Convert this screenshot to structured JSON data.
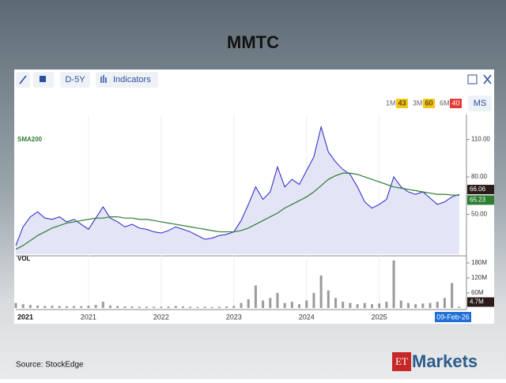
{
  "ui": {
    "toolbar_range": "D-5Y",
    "toolbar_indicators": "Indicators",
    "periods": [
      {
        "label": "1M",
        "score": "43",
        "color": "#f5c518"
      },
      {
        "label": "3M",
        "score": "60",
        "color": "#f5c518"
      },
      {
        "label": "6M",
        "score": "40",
        "color": "#e53935"
      }
    ],
    "ms": "MS",
    "axis_start": "2021",
    "source": "Source: StockEdge",
    "logo_et": "ET",
    "logo_markets": "Markets"
  },
  "chart_data": {
    "type": "line",
    "title": "MMTC",
    "cursor_label": "09-Feb-26",
    "x": [
      2020.0,
      2020.1,
      2020.2,
      2020.3,
      2020.4,
      2020.5,
      2020.6,
      2020.7,
      2020.8,
      2020.9,
      2021.0,
      2021.1,
      2021.2,
      2021.3,
      2021.4,
      2021.5,
      2021.6,
      2021.7,
      2021.8,
      2021.9,
      2022.0,
      2022.1,
      2022.2,
      2022.3,
      2022.4,
      2022.5,
      2022.6,
      2022.7,
      2022.8,
      2022.9,
      2023.0,
      2023.1,
      2023.2,
      2023.3,
      2023.4,
      2023.5,
      2023.6,
      2023.7,
      2023.8,
      2023.9,
      2024.0,
      2024.1,
      2024.2,
      2024.3,
      2024.4,
      2024.5,
      2024.6,
      2024.7,
      2024.8,
      2024.9,
      2025.0,
      2025.1,
      2025.2,
      2025.3,
      2025.4,
      2025.5,
      2025.6,
      2025.7,
      2025.8,
      2025.9,
      2026.0,
      2026.1
    ],
    "series": [
      {
        "color": "#2323c8",
        "fill": "#e4e4f7",
        "values": [
          25,
          40,
          48,
          52,
          47,
          46,
          48,
          44,
          46,
          42,
          38,
          47,
          56,
          47,
          44,
          40,
          42,
          39,
          38,
          36,
          35,
          37,
          40,
          38,
          36,
          33,
          30,
          31,
          33,
          34,
          36,
          45,
          58,
          72,
          62,
          68,
          88,
          72,
          78,
          74,
          85,
          96,
          120,
          100,
          92,
          86,
          82,
          72,
          60,
          55,
          58,
          62,
          80,
          72,
          68,
          66,
          68,
          63,
          58,
          60,
          64,
          66.06
        ]
      },
      {
        "name": "SMA200",
        "color": "#2e7d32",
        "values": [
          22,
          25,
          29,
          33,
          36,
          39,
          41,
          43,
          44,
          45,
          46,
          47,
          47,
          48,
          48,
          47,
          47,
          46,
          46,
          45,
          44,
          43,
          42,
          41,
          40,
          39,
          38,
          37,
          36,
          36,
          36,
          37,
          39,
          42,
          45,
          48,
          51,
          55,
          58,
          61,
          64,
          68,
          73,
          78,
          81,
          83,
          83,
          82,
          80,
          78,
          76,
          74,
          72,
          71,
          70,
          69,
          68,
          67,
          66,
          66,
          65.5,
          65.23
        ]
      },
      {
        "name": "VOL",
        "type": "bar",
        "axis": "y2",
        "color": "#9a9a9a",
        "values": [
          20,
          15,
          12,
          10,
          8,
          9,
          8,
          7,
          8,
          7,
          9,
          12,
          25,
          10,
          8,
          6,
          6,
          5,
          5,
          5,
          5,
          6,
          8,
          6,
          5,
          4,
          5,
          4,
          5,
          6,
          8,
          20,
          35,
          90,
          30,
          40,
          60,
          20,
          25,
          15,
          30,
          60,
          130,
          70,
          40,
          25,
          20,
          15,
          20,
          15,
          18,
          25,
          190,
          30,
          20,
          15,
          18,
          20,
          25,
          40,
          100,
          4.7
        ],
        "value_labels": [
          null,
          null,
          null,
          null,
          null,
          null,
          null,
          null,
          null,
          null,
          null,
          null,
          null,
          null,
          null,
          null,
          null,
          null,
          null,
          null,
          null,
          null,
          null,
          null,
          null,
          null,
          null,
          null,
          null,
          null,
          null,
          null,
          null,
          null,
          null,
          null,
          null,
          null,
          null,
          null,
          null,
          null,
          null,
          null,
          null,
          null,
          null,
          null,
          null,
          null,
          null,
          null,
          null,
          null,
          null,
          null,
          null,
          null,
          null,
          null,
          null,
          "4.7M"
        ]
      }
    ],
    "xlim": [
      2020.0,
      2026.2
    ],
    "xticks": [
      2021,
      2022,
      2023,
      2024,
      2025
    ],
    "ylim": [
      18,
      130
    ],
    "yticks": [
      {
        "value": 50,
        "label": "50.00"
      },
      {
        "value": 80,
        "label": "80.00"
      },
      {
        "value": 110,
        "label": "110.00"
      }
    ],
    "y2lim": [
      0,
      202
    ],
    "y2ticks": [
      {
        "value": 60,
        "label": "60M"
      },
      {
        "value": 120,
        "label": "120M"
      },
      {
        "value": 180,
        "label": "180M"
      }
    ]
  }
}
